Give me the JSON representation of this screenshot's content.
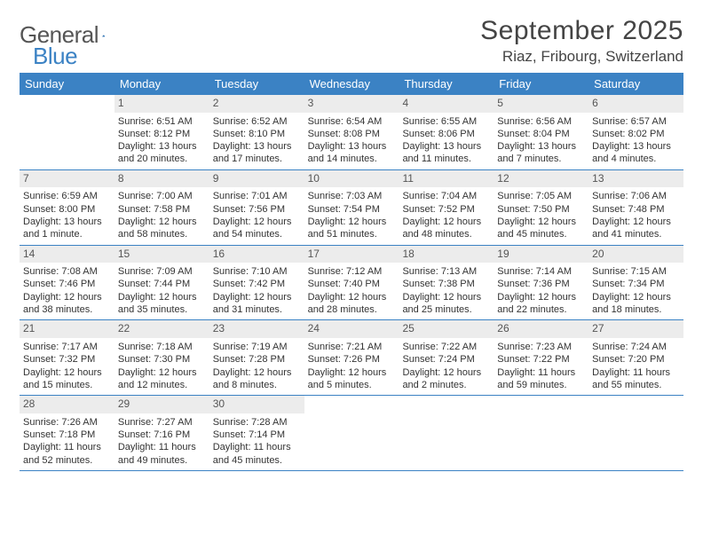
{
  "logo": {
    "word1": "General",
    "word2": "Blue"
  },
  "title": "September 2025",
  "location": "Riaz, Fribourg, Switzerland",
  "colors": {
    "header_bar": "#3b82c4",
    "day_num_bg": "#ececec",
    "text": "#333333",
    "rule": "#3b82c4",
    "background": "#ffffff"
  },
  "typography": {
    "title_fontsize": 30,
    "location_fontsize": 17,
    "dow_fontsize": 13,
    "body_fontsize": 11
  },
  "days_of_week": [
    "Sunday",
    "Monday",
    "Tuesday",
    "Wednesday",
    "Thursday",
    "Friday",
    "Saturday"
  ],
  "weeks": [
    [
      {
        "n": "",
        "sunrise": "",
        "sunset": "",
        "daylight": ""
      },
      {
        "n": "1",
        "sunrise": "Sunrise: 6:51 AM",
        "sunset": "Sunset: 8:12 PM",
        "daylight": "Daylight: 13 hours and 20 minutes."
      },
      {
        "n": "2",
        "sunrise": "Sunrise: 6:52 AM",
        "sunset": "Sunset: 8:10 PM",
        "daylight": "Daylight: 13 hours and 17 minutes."
      },
      {
        "n": "3",
        "sunrise": "Sunrise: 6:54 AM",
        "sunset": "Sunset: 8:08 PM",
        "daylight": "Daylight: 13 hours and 14 minutes."
      },
      {
        "n": "4",
        "sunrise": "Sunrise: 6:55 AM",
        "sunset": "Sunset: 8:06 PM",
        "daylight": "Daylight: 13 hours and 11 minutes."
      },
      {
        "n": "5",
        "sunrise": "Sunrise: 6:56 AM",
        "sunset": "Sunset: 8:04 PM",
        "daylight": "Daylight: 13 hours and 7 minutes."
      },
      {
        "n": "6",
        "sunrise": "Sunrise: 6:57 AM",
        "sunset": "Sunset: 8:02 PM",
        "daylight": "Daylight: 13 hours and 4 minutes."
      }
    ],
    [
      {
        "n": "7",
        "sunrise": "Sunrise: 6:59 AM",
        "sunset": "Sunset: 8:00 PM",
        "daylight": "Daylight: 13 hours and 1 minute."
      },
      {
        "n": "8",
        "sunrise": "Sunrise: 7:00 AM",
        "sunset": "Sunset: 7:58 PM",
        "daylight": "Daylight: 12 hours and 58 minutes."
      },
      {
        "n": "9",
        "sunrise": "Sunrise: 7:01 AM",
        "sunset": "Sunset: 7:56 PM",
        "daylight": "Daylight: 12 hours and 54 minutes."
      },
      {
        "n": "10",
        "sunrise": "Sunrise: 7:03 AM",
        "sunset": "Sunset: 7:54 PM",
        "daylight": "Daylight: 12 hours and 51 minutes."
      },
      {
        "n": "11",
        "sunrise": "Sunrise: 7:04 AM",
        "sunset": "Sunset: 7:52 PM",
        "daylight": "Daylight: 12 hours and 48 minutes."
      },
      {
        "n": "12",
        "sunrise": "Sunrise: 7:05 AM",
        "sunset": "Sunset: 7:50 PM",
        "daylight": "Daylight: 12 hours and 45 minutes."
      },
      {
        "n": "13",
        "sunrise": "Sunrise: 7:06 AM",
        "sunset": "Sunset: 7:48 PM",
        "daylight": "Daylight: 12 hours and 41 minutes."
      }
    ],
    [
      {
        "n": "14",
        "sunrise": "Sunrise: 7:08 AM",
        "sunset": "Sunset: 7:46 PM",
        "daylight": "Daylight: 12 hours and 38 minutes."
      },
      {
        "n": "15",
        "sunrise": "Sunrise: 7:09 AM",
        "sunset": "Sunset: 7:44 PM",
        "daylight": "Daylight: 12 hours and 35 minutes."
      },
      {
        "n": "16",
        "sunrise": "Sunrise: 7:10 AM",
        "sunset": "Sunset: 7:42 PM",
        "daylight": "Daylight: 12 hours and 31 minutes."
      },
      {
        "n": "17",
        "sunrise": "Sunrise: 7:12 AM",
        "sunset": "Sunset: 7:40 PM",
        "daylight": "Daylight: 12 hours and 28 minutes."
      },
      {
        "n": "18",
        "sunrise": "Sunrise: 7:13 AM",
        "sunset": "Sunset: 7:38 PM",
        "daylight": "Daylight: 12 hours and 25 minutes."
      },
      {
        "n": "19",
        "sunrise": "Sunrise: 7:14 AM",
        "sunset": "Sunset: 7:36 PM",
        "daylight": "Daylight: 12 hours and 22 minutes."
      },
      {
        "n": "20",
        "sunrise": "Sunrise: 7:15 AM",
        "sunset": "Sunset: 7:34 PM",
        "daylight": "Daylight: 12 hours and 18 minutes."
      }
    ],
    [
      {
        "n": "21",
        "sunrise": "Sunrise: 7:17 AM",
        "sunset": "Sunset: 7:32 PM",
        "daylight": "Daylight: 12 hours and 15 minutes."
      },
      {
        "n": "22",
        "sunrise": "Sunrise: 7:18 AM",
        "sunset": "Sunset: 7:30 PM",
        "daylight": "Daylight: 12 hours and 12 minutes."
      },
      {
        "n": "23",
        "sunrise": "Sunrise: 7:19 AM",
        "sunset": "Sunset: 7:28 PM",
        "daylight": "Daylight: 12 hours and 8 minutes."
      },
      {
        "n": "24",
        "sunrise": "Sunrise: 7:21 AM",
        "sunset": "Sunset: 7:26 PM",
        "daylight": "Daylight: 12 hours and 5 minutes."
      },
      {
        "n": "25",
        "sunrise": "Sunrise: 7:22 AM",
        "sunset": "Sunset: 7:24 PM",
        "daylight": "Daylight: 12 hours and 2 minutes."
      },
      {
        "n": "26",
        "sunrise": "Sunrise: 7:23 AM",
        "sunset": "Sunset: 7:22 PM",
        "daylight": "Daylight: 11 hours and 59 minutes."
      },
      {
        "n": "27",
        "sunrise": "Sunrise: 7:24 AM",
        "sunset": "Sunset: 7:20 PM",
        "daylight": "Daylight: 11 hours and 55 minutes."
      }
    ],
    [
      {
        "n": "28",
        "sunrise": "Sunrise: 7:26 AM",
        "sunset": "Sunset: 7:18 PM",
        "daylight": "Daylight: 11 hours and 52 minutes."
      },
      {
        "n": "29",
        "sunrise": "Sunrise: 7:27 AM",
        "sunset": "Sunset: 7:16 PM",
        "daylight": "Daylight: 11 hours and 49 minutes."
      },
      {
        "n": "30",
        "sunrise": "Sunrise: 7:28 AM",
        "sunset": "Sunset: 7:14 PM",
        "daylight": "Daylight: 11 hours and 45 minutes."
      },
      {
        "n": "",
        "sunrise": "",
        "sunset": "",
        "daylight": ""
      },
      {
        "n": "",
        "sunrise": "",
        "sunset": "",
        "daylight": ""
      },
      {
        "n": "",
        "sunrise": "",
        "sunset": "",
        "daylight": ""
      },
      {
        "n": "",
        "sunrise": "",
        "sunset": "",
        "daylight": ""
      }
    ]
  ]
}
